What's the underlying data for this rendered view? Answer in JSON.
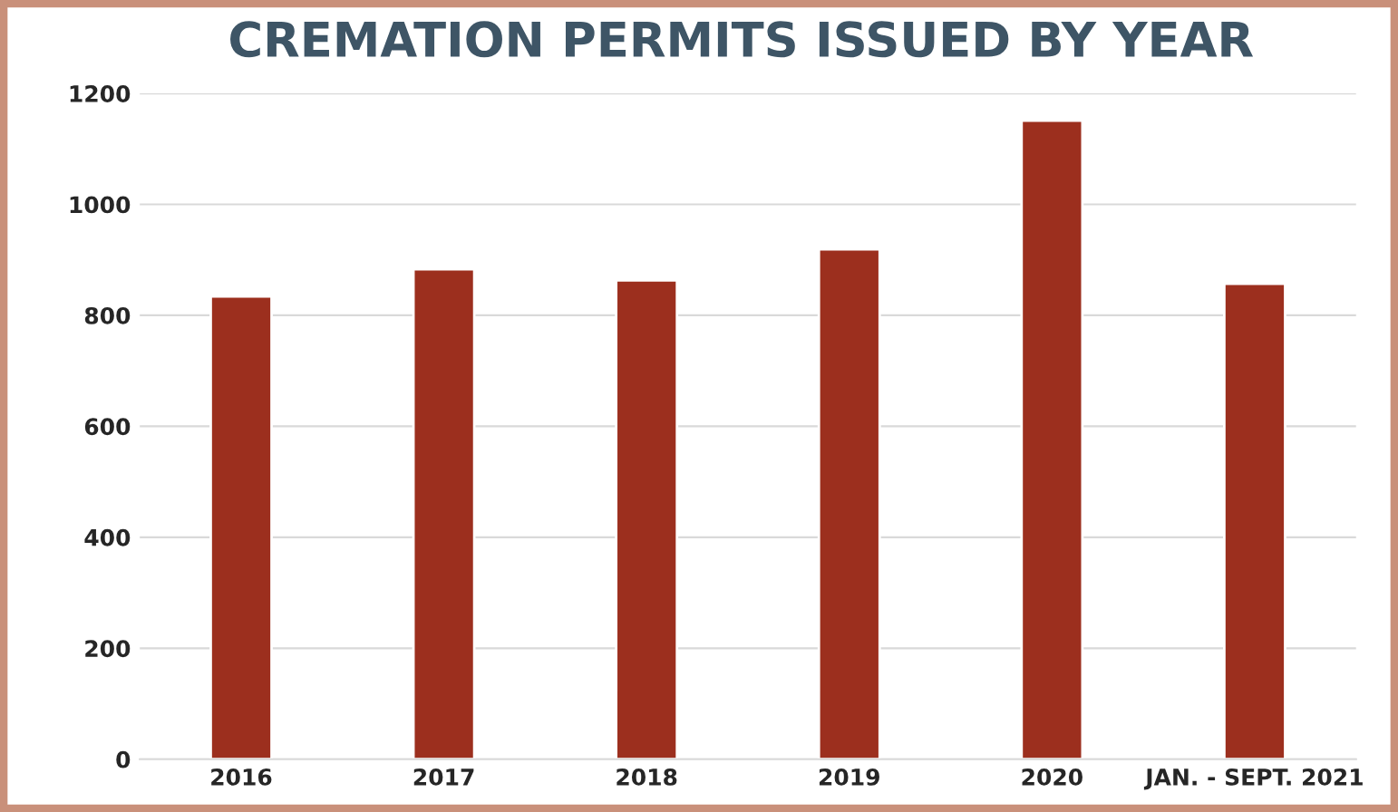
{
  "chart_data": {
    "type": "bar",
    "title": "CREMATION PERMITS ISSUED BY YEAR",
    "categories": [
      "2016",
      "2017",
      "2018",
      "2019",
      "2020",
      "JAN. - SEPT. 2021"
    ],
    "values": [
      834,
      883,
      863,
      919,
      1151,
      857
    ],
    "color": "#9c2f1e",
    "ylim": [
      0,
      1200
    ],
    "yticks": [
      0,
      200,
      400,
      600,
      800,
      1000,
      1200
    ],
    "grid": "y"
  }
}
